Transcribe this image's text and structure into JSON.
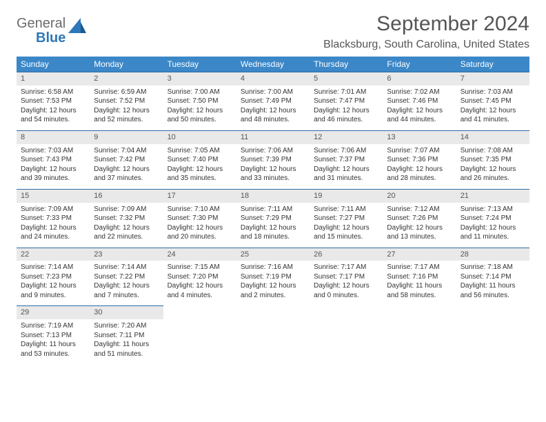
{
  "brand": {
    "general": "General",
    "blue": "Blue"
  },
  "title": "September 2024",
  "location": "Blacksburg, South Carolina, United States",
  "colors": {
    "header_bg": "#3b87c8",
    "header_text": "#ffffff",
    "daynum_bg": "#e9e9e9",
    "rule": "#2d6aa3",
    "body_text": "#333333",
    "title_text": "#555555"
  },
  "weekdays": [
    "Sunday",
    "Monday",
    "Tuesday",
    "Wednesday",
    "Thursday",
    "Friday",
    "Saturday"
  ],
  "weeks": [
    [
      {
        "n": "1",
        "sr": "Sunrise: 6:58 AM",
        "ss": "Sunset: 7:53 PM",
        "d1": "Daylight: 12 hours",
        "d2": "and 54 minutes."
      },
      {
        "n": "2",
        "sr": "Sunrise: 6:59 AM",
        "ss": "Sunset: 7:52 PM",
        "d1": "Daylight: 12 hours",
        "d2": "and 52 minutes."
      },
      {
        "n": "3",
        "sr": "Sunrise: 7:00 AM",
        "ss": "Sunset: 7:50 PM",
        "d1": "Daylight: 12 hours",
        "d2": "and 50 minutes."
      },
      {
        "n": "4",
        "sr": "Sunrise: 7:00 AM",
        "ss": "Sunset: 7:49 PM",
        "d1": "Daylight: 12 hours",
        "d2": "and 48 minutes."
      },
      {
        "n": "5",
        "sr": "Sunrise: 7:01 AM",
        "ss": "Sunset: 7:47 PM",
        "d1": "Daylight: 12 hours",
        "d2": "and 46 minutes."
      },
      {
        "n": "6",
        "sr": "Sunrise: 7:02 AM",
        "ss": "Sunset: 7:46 PM",
        "d1": "Daylight: 12 hours",
        "d2": "and 44 minutes."
      },
      {
        "n": "7",
        "sr": "Sunrise: 7:03 AM",
        "ss": "Sunset: 7:45 PM",
        "d1": "Daylight: 12 hours",
        "d2": "and 41 minutes."
      }
    ],
    [
      {
        "n": "8",
        "sr": "Sunrise: 7:03 AM",
        "ss": "Sunset: 7:43 PM",
        "d1": "Daylight: 12 hours",
        "d2": "and 39 minutes."
      },
      {
        "n": "9",
        "sr": "Sunrise: 7:04 AM",
        "ss": "Sunset: 7:42 PM",
        "d1": "Daylight: 12 hours",
        "d2": "and 37 minutes."
      },
      {
        "n": "10",
        "sr": "Sunrise: 7:05 AM",
        "ss": "Sunset: 7:40 PM",
        "d1": "Daylight: 12 hours",
        "d2": "and 35 minutes."
      },
      {
        "n": "11",
        "sr": "Sunrise: 7:06 AM",
        "ss": "Sunset: 7:39 PM",
        "d1": "Daylight: 12 hours",
        "d2": "and 33 minutes."
      },
      {
        "n": "12",
        "sr": "Sunrise: 7:06 AM",
        "ss": "Sunset: 7:37 PM",
        "d1": "Daylight: 12 hours",
        "d2": "and 31 minutes."
      },
      {
        "n": "13",
        "sr": "Sunrise: 7:07 AM",
        "ss": "Sunset: 7:36 PM",
        "d1": "Daylight: 12 hours",
        "d2": "and 28 minutes."
      },
      {
        "n": "14",
        "sr": "Sunrise: 7:08 AM",
        "ss": "Sunset: 7:35 PM",
        "d1": "Daylight: 12 hours",
        "d2": "and 26 minutes."
      }
    ],
    [
      {
        "n": "15",
        "sr": "Sunrise: 7:09 AM",
        "ss": "Sunset: 7:33 PM",
        "d1": "Daylight: 12 hours",
        "d2": "and 24 minutes."
      },
      {
        "n": "16",
        "sr": "Sunrise: 7:09 AM",
        "ss": "Sunset: 7:32 PM",
        "d1": "Daylight: 12 hours",
        "d2": "and 22 minutes."
      },
      {
        "n": "17",
        "sr": "Sunrise: 7:10 AM",
        "ss": "Sunset: 7:30 PM",
        "d1": "Daylight: 12 hours",
        "d2": "and 20 minutes."
      },
      {
        "n": "18",
        "sr": "Sunrise: 7:11 AM",
        "ss": "Sunset: 7:29 PM",
        "d1": "Daylight: 12 hours",
        "d2": "and 18 minutes."
      },
      {
        "n": "19",
        "sr": "Sunrise: 7:11 AM",
        "ss": "Sunset: 7:27 PM",
        "d1": "Daylight: 12 hours",
        "d2": "and 15 minutes."
      },
      {
        "n": "20",
        "sr": "Sunrise: 7:12 AM",
        "ss": "Sunset: 7:26 PM",
        "d1": "Daylight: 12 hours",
        "d2": "and 13 minutes."
      },
      {
        "n": "21",
        "sr": "Sunrise: 7:13 AM",
        "ss": "Sunset: 7:24 PM",
        "d1": "Daylight: 12 hours",
        "d2": "and 11 minutes."
      }
    ],
    [
      {
        "n": "22",
        "sr": "Sunrise: 7:14 AM",
        "ss": "Sunset: 7:23 PM",
        "d1": "Daylight: 12 hours",
        "d2": "and 9 minutes."
      },
      {
        "n": "23",
        "sr": "Sunrise: 7:14 AM",
        "ss": "Sunset: 7:22 PM",
        "d1": "Daylight: 12 hours",
        "d2": "and 7 minutes."
      },
      {
        "n": "24",
        "sr": "Sunrise: 7:15 AM",
        "ss": "Sunset: 7:20 PM",
        "d1": "Daylight: 12 hours",
        "d2": "and 4 minutes."
      },
      {
        "n": "25",
        "sr": "Sunrise: 7:16 AM",
        "ss": "Sunset: 7:19 PM",
        "d1": "Daylight: 12 hours",
        "d2": "and 2 minutes."
      },
      {
        "n": "26",
        "sr": "Sunrise: 7:17 AM",
        "ss": "Sunset: 7:17 PM",
        "d1": "Daylight: 12 hours",
        "d2": "and 0 minutes."
      },
      {
        "n": "27",
        "sr": "Sunrise: 7:17 AM",
        "ss": "Sunset: 7:16 PM",
        "d1": "Daylight: 11 hours",
        "d2": "and 58 minutes."
      },
      {
        "n": "28",
        "sr": "Sunrise: 7:18 AM",
        "ss": "Sunset: 7:14 PM",
        "d1": "Daylight: 11 hours",
        "d2": "and 56 minutes."
      }
    ],
    [
      {
        "n": "29",
        "sr": "Sunrise: 7:19 AM",
        "ss": "Sunset: 7:13 PM",
        "d1": "Daylight: 11 hours",
        "d2": "and 53 minutes."
      },
      {
        "n": "30",
        "sr": "Sunrise: 7:20 AM",
        "ss": "Sunset: 7:11 PM",
        "d1": "Daylight: 11 hours",
        "d2": "and 51 minutes."
      },
      null,
      null,
      null,
      null,
      null
    ]
  ]
}
